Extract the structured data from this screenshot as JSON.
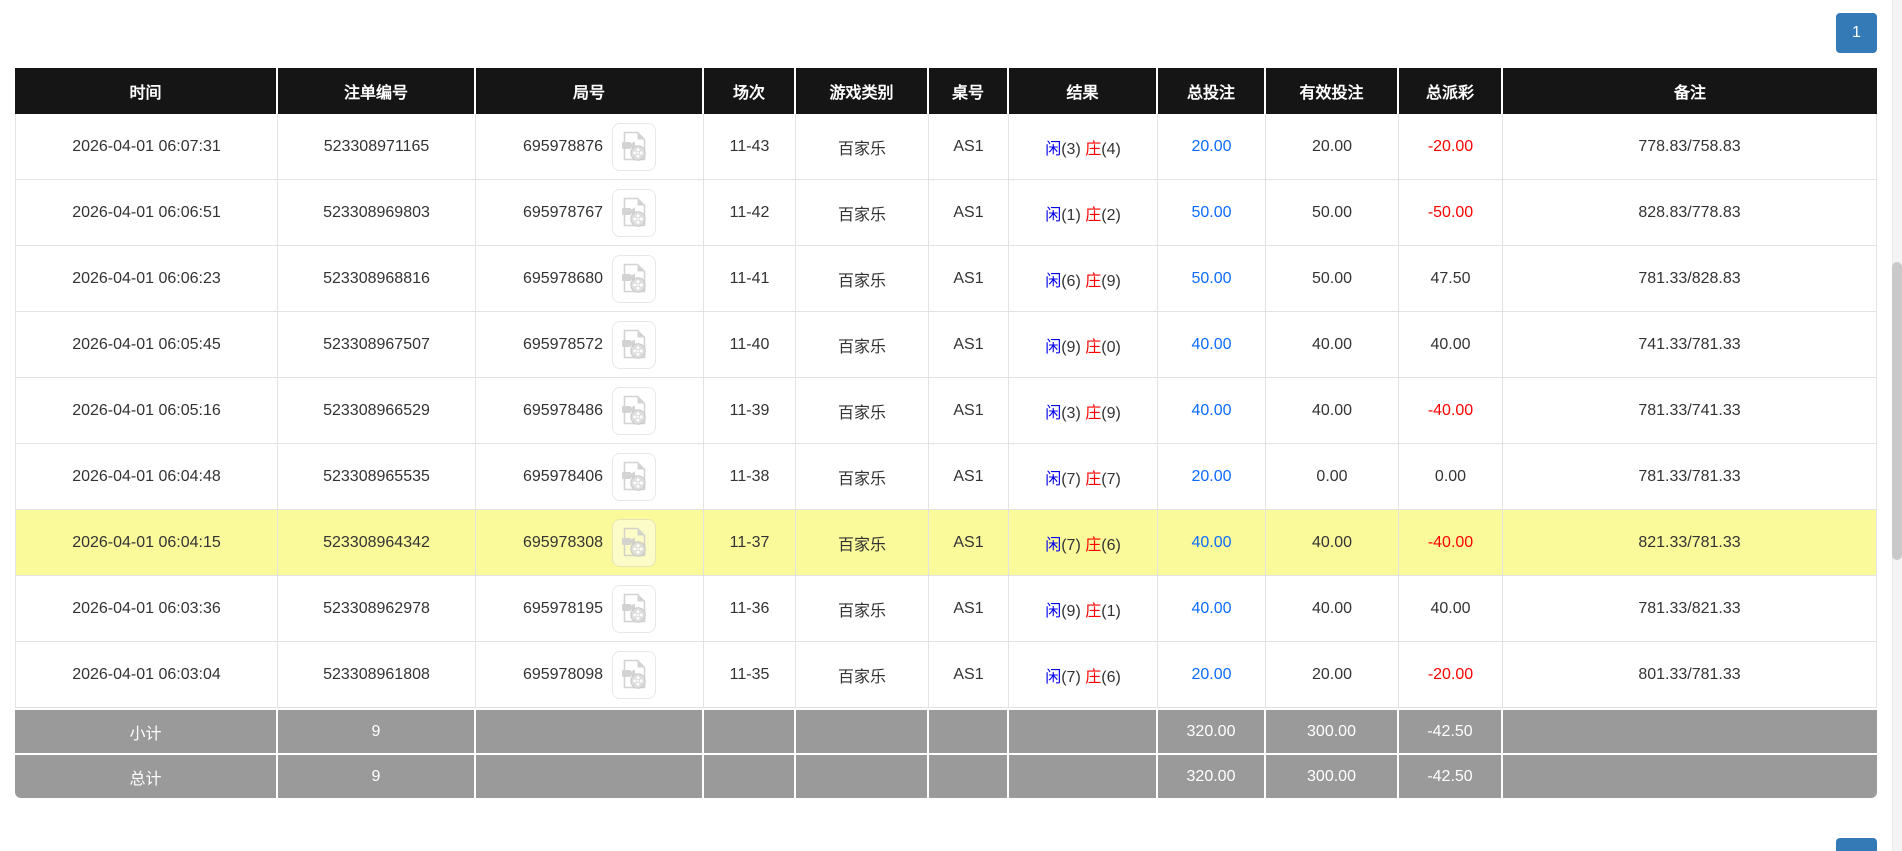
{
  "pagination": {
    "page_label": "1"
  },
  "icons": {
    "round_icon": "video-replay-icon"
  },
  "colors": {
    "header_bg": "#151515",
    "header_text": "#ffffff",
    "footer_bg": "#9a9a9a",
    "highlight_row_bg": "#fafa9b",
    "player_blue": "#0000ee",
    "banker_red": "#ff0000",
    "total_bet_blue": "#0d6bff",
    "negative_red": "#ff0000",
    "pagination_blue": "#337ab7"
  },
  "table": {
    "columns": [
      {
        "key": "time",
        "label": "时间"
      },
      {
        "key": "bet_id",
        "label": "注单编号"
      },
      {
        "key": "round_id",
        "label": "局号"
      },
      {
        "key": "session",
        "label": "场次"
      },
      {
        "key": "game_type",
        "label": "游戏类别"
      },
      {
        "key": "table_no",
        "label": "桌号"
      },
      {
        "key": "result",
        "label": "结果"
      },
      {
        "key": "total_bet",
        "label": "总投注"
      },
      {
        "key": "valid_bet",
        "label": "有效投注"
      },
      {
        "key": "payout",
        "label": "总派彩"
      },
      {
        "key": "remark",
        "label": "备注"
      }
    ],
    "rows": [
      {
        "time": "2026-04-01 06:07:31",
        "bet_id": "523308971165",
        "round_id": "695978876",
        "session": "11-43",
        "game_type": "百家乐",
        "table_no": "AS1",
        "result": {
          "player_label": "闲",
          "player_score": "(3)",
          "banker_label": "庄",
          "banker_score": "(4)"
        },
        "total_bet": "20.00",
        "valid_bet": "20.00",
        "payout": "-20.00",
        "remark": "778.83/758.83",
        "highlighted": false
      },
      {
        "time": "2026-04-01 06:06:51",
        "bet_id": "523308969803",
        "round_id": "695978767",
        "session": "11-42",
        "game_type": "百家乐",
        "table_no": "AS1",
        "result": {
          "player_label": "闲",
          "player_score": "(1)",
          "banker_label": "庄",
          "banker_score": "(2)"
        },
        "total_bet": "50.00",
        "valid_bet": "50.00",
        "payout": "-50.00",
        "remark": "828.83/778.83",
        "highlighted": false
      },
      {
        "time": "2026-04-01 06:06:23",
        "bet_id": "523308968816",
        "round_id": "695978680",
        "session": "11-41",
        "game_type": "百家乐",
        "table_no": "AS1",
        "result": {
          "player_label": "闲",
          "player_score": "(6)",
          "banker_label": "庄",
          "banker_score": "(9)"
        },
        "total_bet": "50.00",
        "valid_bet": "50.00",
        "payout": "47.50",
        "remark": "781.33/828.83",
        "highlighted": false
      },
      {
        "time": "2026-04-01 06:05:45",
        "bet_id": "523308967507",
        "round_id": "695978572",
        "session": "11-40",
        "game_type": "百家乐",
        "table_no": "AS1",
        "result": {
          "player_label": "闲",
          "player_score": "(9)",
          "banker_label": "庄",
          "banker_score": "(0)"
        },
        "total_bet": "40.00",
        "valid_bet": "40.00",
        "payout": "40.00",
        "remark": "741.33/781.33",
        "highlighted": false
      },
      {
        "time": "2026-04-01 06:05:16",
        "bet_id": "523308966529",
        "round_id": "695978486",
        "session": "11-39",
        "game_type": "百家乐",
        "table_no": "AS1",
        "result": {
          "player_label": "闲",
          "player_score": "(3)",
          "banker_label": "庄",
          "banker_score": "(9)"
        },
        "total_bet": "40.00",
        "valid_bet": "40.00",
        "payout": "-40.00",
        "remark": "781.33/741.33",
        "highlighted": false
      },
      {
        "time": "2026-04-01 06:04:48",
        "bet_id": "523308965535",
        "round_id": "695978406",
        "session": "11-38",
        "game_type": "百家乐",
        "table_no": "AS1",
        "result": {
          "player_label": "闲",
          "player_score": "(7)",
          "banker_label": "庄",
          "banker_score": "(7)"
        },
        "total_bet": "20.00",
        "valid_bet": "0.00",
        "payout": "0.00",
        "remark": "781.33/781.33",
        "highlighted": false
      },
      {
        "time": "2026-04-01 06:04:15",
        "bet_id": "523308964342",
        "round_id": "695978308",
        "session": "11-37",
        "game_type": "百家乐",
        "table_no": "AS1",
        "result": {
          "player_label": "闲",
          "player_score": "(7)",
          "banker_label": "庄",
          "banker_score": "(6)"
        },
        "total_bet": "40.00",
        "valid_bet": "40.00",
        "payout": "-40.00",
        "remark": "821.33/781.33",
        "highlighted": true
      },
      {
        "time": "2026-04-01 06:03:36",
        "bet_id": "523308962978",
        "round_id": "695978195",
        "session": "11-36",
        "game_type": "百家乐",
        "table_no": "AS1",
        "result": {
          "player_label": "闲",
          "player_score": "(9)",
          "banker_label": "庄",
          "banker_score": "(1)"
        },
        "total_bet": "40.00",
        "valid_bet": "40.00",
        "payout": "40.00",
        "remark": "781.33/821.33",
        "highlighted": false
      },
      {
        "time": "2026-04-01 06:03:04",
        "bet_id": "523308961808",
        "round_id": "695978098",
        "session": "11-35",
        "game_type": "百家乐",
        "table_no": "AS1",
        "result": {
          "player_label": "闲",
          "player_score": "(7)",
          "banker_label": "庄",
          "banker_score": "(6)"
        },
        "total_bet": "20.00",
        "valid_bet": "20.00",
        "payout": "-20.00",
        "remark": "801.33/781.33",
        "highlighted": false
      }
    ],
    "footer_rows": [
      {
        "label": "小计",
        "bet_count": "9",
        "total_bet": "320.00",
        "valid_bet": "300.00",
        "payout": "-42.50"
      },
      {
        "label": "总计",
        "bet_count": "9",
        "total_bet": "320.00",
        "valid_bet": "300.00",
        "payout": "-42.50"
      }
    ]
  }
}
